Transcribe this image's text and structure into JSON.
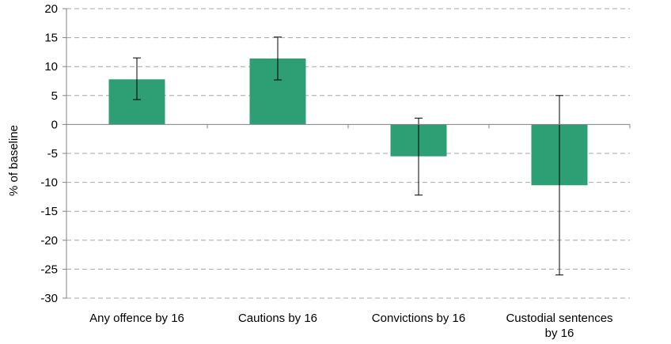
{
  "chart_data": {
    "type": "bar",
    "title": "",
    "xlabel": "",
    "ylabel": "% of baseline",
    "ylim": [
      -30,
      20
    ],
    "yticks": [
      20,
      15,
      10,
      5,
      0,
      -5,
      -10,
      -15,
      -20,
      -25,
      -30
    ],
    "grid": true,
    "categories": [
      [
        "Any offence by 16"
      ],
      [
        "Cautions by 16"
      ],
      [
        "Convictions by 16"
      ],
      [
        "Custodial sentences",
        "by 16"
      ]
    ],
    "values": [
      7.8,
      11.4,
      -5.5,
      -10.5
    ],
    "error_low": [
      4.3,
      7.7,
      -12.2,
      -26.0
    ],
    "error_high": [
      11.5,
      15.1,
      1.1,
      5.0
    ],
    "colors": {
      "bar": "#2e9e74",
      "grid": "#a6a6a6",
      "axis": "#808080",
      "error": "#000000"
    }
  }
}
